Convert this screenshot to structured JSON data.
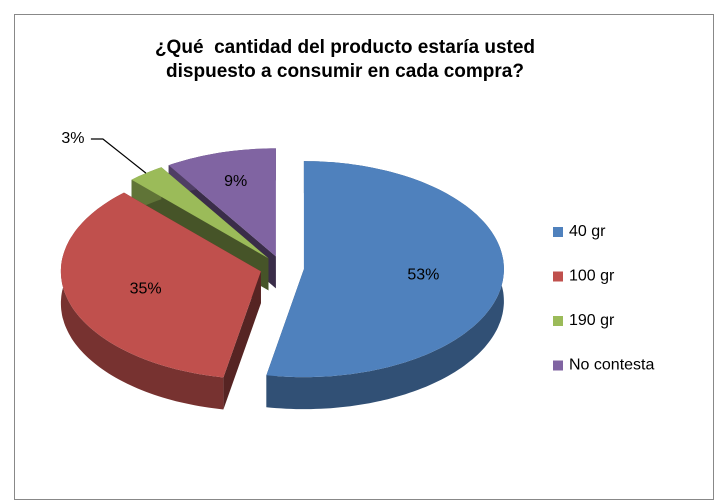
{
  "chart_data": {
    "type": "pie",
    "title": "¿Qué  cantidad del producto estaría usted dispuesto a consumir en cada compra?",
    "categories": [
      "40 gr",
      "100 gr",
      "190 gr",
      "No contesta"
    ],
    "values": [
      53,
      35,
      3,
      9
    ],
    "value_labels": [
      "53%",
      "35%",
      "3%",
      "9%"
    ],
    "colors": [
      "#4f81bd",
      "#c0504d",
      "#9bbb59",
      "#8064a2"
    ],
    "legend": "right",
    "exploded": true,
    "three_d": true
  }
}
